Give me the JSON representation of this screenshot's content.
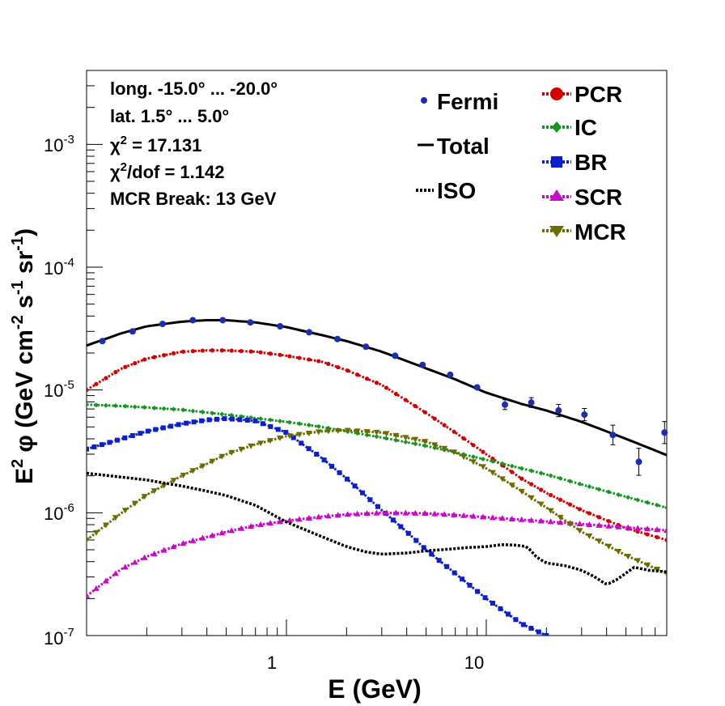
{
  "chart_data": {
    "type": "line",
    "xlabel": "E (GeV)",
    "ylabel_parts": {
      "e2": "E",
      "sq": "2",
      "phi": " φ (GeV cm",
      "m2": "-2",
      "s": " s",
      "m1a": "-1",
      "sr": " sr",
      "m1b": "-1",
      "close": ")"
    },
    "x_scale": "log",
    "y_scale": "log",
    "xlim": [
      0.1,
      80
    ],
    "ylim": [
      1e-07,
      0.004
    ],
    "x_tick_labels": [
      {
        "v": 1,
        "label": "1"
      },
      {
        "v": 10,
        "label": "10"
      }
    ],
    "y_tick_labels": [
      {
        "v": 1e-07,
        "base": "10",
        "exp": "-7"
      },
      {
        "v": 1e-06,
        "base": "10",
        "exp": "-6"
      },
      {
        "v": 1e-05,
        "base": "10",
        "exp": "-5"
      },
      {
        "v": 0.0001,
        "base": "10",
        "exp": "-4"
      },
      {
        "v": 0.001,
        "base": "10",
        "exp": "-3"
      }
    ],
    "annotations": {
      "long": "long. -15.0° ... -20.0°",
      "lat": "lat. 1.5° ... 5.0°",
      "chi2_sym": "χ",
      "chi2_exp": "2",
      "chi2_rest": " = 17.131",
      "chi2dof_sym": "χ",
      "chi2dof_exp": "2",
      "chi2dof_rest": "/dof = 1.142",
      "mcr_break": "MCR Break: 13 GeV"
    },
    "legend": {
      "left": [
        {
          "label": "Fermi",
          "color": "#1a2fb0",
          "marker": "dot"
        },
        {
          "label": "Total",
          "color": "#000000",
          "marker": "line"
        },
        {
          "label": "ISO",
          "color": "#000000",
          "marker": "dotted"
        }
      ],
      "right": [
        {
          "label": "PCR",
          "color": "#d40000",
          "marker": "circle"
        },
        {
          "label": "IC",
          "color": "#14961e",
          "marker": "diamond"
        },
        {
          "label": "BR",
          "color": "#0b1fcc",
          "marker": "square"
        },
        {
          "label": "SCR",
          "color": "#c80ac8",
          "marker": "triangle-up"
        },
        {
          "label": "MCR",
          "color": "#6b6b00",
          "marker": "triangle-down"
        }
      ]
    },
    "fermi": {
      "name": "Fermi",
      "color": "#1a2fb0",
      "points": [
        {
          "x": 0.12,
          "y": 2.5e-05,
          "err": 0
        },
        {
          "x": 0.17,
          "y": 3e-05,
          "err": 0
        },
        {
          "x": 0.24,
          "y": 3.45e-05,
          "err": 0
        },
        {
          "x": 0.34,
          "y": 3.7e-05,
          "err": 0
        },
        {
          "x": 0.48,
          "y": 3.7e-05,
          "err": 0
        },
        {
          "x": 0.66,
          "y": 3.55e-05,
          "err": 0
        },
        {
          "x": 0.93,
          "y": 3.3e-05,
          "err": 0
        },
        {
          "x": 1.3,
          "y": 2.95e-05,
          "err": 0
        },
        {
          "x": 1.8,
          "y": 2.6e-05,
          "err": 0
        },
        {
          "x": 2.5,
          "y": 2.25e-05,
          "err": 0
        },
        {
          "x": 3.5,
          "y": 1.9e-05,
          "err": 0
        },
        {
          "x": 4.8,
          "y": 1.6e-05,
          "err": 0
        },
        {
          "x": 6.6,
          "y": 1.33e-05,
          "err": 0
        },
        {
          "x": 9.0,
          "y": 1.05e-05,
          "err": 0
        },
        {
          "x": 12.4,
          "y": 7.6e-06,
          "err": 0.08
        },
        {
          "x": 16.8,
          "y": 7.9e-06,
          "err": 0.08
        },
        {
          "x": 23.0,
          "y": 6.8e-06,
          "err": 0.1
        },
        {
          "x": 31.0,
          "y": 6.3e-06,
          "err": 0.1
        },
        {
          "x": 43.0,
          "y": 4.3e-06,
          "err": 0.16
        },
        {
          "x": 58.0,
          "y": 2.6e-06,
          "err": 0.22
        },
        {
          "x": 78.0,
          "y": 4.5e-06,
          "err": 0.18
        }
      ]
    },
    "series": [
      {
        "name": "Total",
        "color": "#000000",
        "style": "line",
        "x": [
          0.1,
          0.15,
          0.2,
          0.3,
          0.4,
          0.5,
          0.7,
          1,
          1.5,
          2,
          3,
          5,
          7,
          10,
          15,
          20,
          30,
          50,
          80
        ],
        "y": [
          2.3e-05,
          2.9e-05,
          3.3e-05,
          3.6e-05,
          3.7e-05,
          3.7e-05,
          3.55e-05,
          3.25e-05,
          2.8e-05,
          2.5e-05,
          2.05e-05,
          1.5e-05,
          1.22e-05,
          9.5e-06,
          7.7e-06,
          6.8e-06,
          5.5e-06,
          4e-06,
          2.95e-06
        ]
      },
      {
        "name": "PCR",
        "color": "#d40000",
        "style": "circle",
        "x": [
          0.1,
          0.15,
          0.2,
          0.3,
          0.4,
          0.5,
          0.7,
          1,
          1.5,
          2,
          3,
          5,
          7,
          10,
          15,
          20,
          30,
          50,
          80
        ],
        "y": [
          1e-05,
          1.5e-05,
          1.8e-05,
          2.05e-05,
          2.1e-05,
          2.1e-05,
          2.05e-05,
          1.9e-05,
          1.7e-05,
          1.45e-05,
          1.1e-05,
          6.5e-06,
          4.5e-06,
          3e-06,
          1.9e-06,
          1.45e-06,
          1.05e-06,
          7.5e-07,
          6e-07
        ]
      },
      {
        "name": "IC",
        "color": "#14961e",
        "style": "diamond",
        "x": [
          0.1,
          0.15,
          0.2,
          0.3,
          0.5,
          0.7,
          1,
          1.5,
          2,
          3,
          5,
          7,
          10,
          15,
          20,
          30,
          50,
          80
        ],
        "y": [
          7.6e-06,
          7.4e-06,
          7.2e-06,
          6.9e-06,
          6.3e-06,
          5.9e-06,
          5.5e-06,
          5e-06,
          4.6e-06,
          4.1e-06,
          3.5e-06,
          3.1e-06,
          2.7e-06,
          2.3e-06,
          2.05e-06,
          1.7e-06,
          1.35e-06,
          1.1e-06
        ]
      },
      {
        "name": "BR",
        "color": "#0b1fcc",
        "style": "square",
        "x": [
          0.1,
          0.15,
          0.2,
          0.3,
          0.4,
          0.5,
          0.7,
          1,
          1.5,
          2,
          3,
          4,
          5,
          7,
          10,
          15,
          20
        ],
        "y": [
          3.3e-06,
          4e-06,
          4.6e-06,
          5.3e-06,
          5.7e-06,
          5.85e-06,
          5.6e-06,
          4.5e-06,
          2.8e-06,
          1.9e-06,
          1.05e-06,
          7e-07,
          5e-07,
          3.2e-07,
          2e-07,
          1.25e-07,
          1e-07
        ]
      },
      {
        "name": "SCR",
        "color": "#c80ac8",
        "style": "triangle-up",
        "x": [
          0.1,
          0.15,
          0.2,
          0.3,
          0.5,
          0.7,
          1,
          1.5,
          2,
          3,
          5,
          7,
          10,
          15,
          20,
          30,
          50,
          80
        ],
        "y": [
          2.1e-07,
          3.5e-07,
          4.4e-07,
          5.6e-07,
          7e-07,
          7.9e-07,
          8.6e-07,
          9.3e-07,
          9.7e-07,
          1e-06,
          9.9e-07,
          9.6e-07,
          9.2e-07,
          8.8e-07,
          8.5e-07,
          8.1e-07,
          7.6e-07,
          7.2e-07
        ]
      },
      {
        "name": "MCR",
        "color": "#6b6b00",
        "style": "triangle-down",
        "x": [
          0.1,
          0.15,
          0.2,
          0.3,
          0.4,
          0.5,
          0.7,
          1,
          1.5,
          2,
          3,
          5,
          7,
          10,
          15,
          20,
          30,
          50,
          80
        ],
        "y": [
          6e-07,
          1e-06,
          1.4e-06,
          2e-06,
          2.5e-06,
          3e-06,
          3.6e-06,
          4.2e-06,
          4.6e-06,
          4.7e-06,
          4.5e-06,
          3.8e-06,
          3.1e-06,
          2.3e-06,
          1.5e-06,
          1.1e-06,
          7e-07,
          4.5e-07,
          3.2e-07
        ]
      },
      {
        "name": "ISO",
        "color": "#000000",
        "style": "dotted",
        "x": [
          0.1,
          0.15,
          0.2,
          0.3,
          0.4,
          0.5,
          0.7,
          1,
          1.5,
          2,
          2.5,
          3,
          4,
          5,
          6,
          8,
          10,
          12,
          14,
          16,
          18,
          20,
          25,
          30,
          35,
          40,
          45,
          55,
          65,
          80
        ],
        "y": [
          2.1e-06,
          1.95e-06,
          1.85e-06,
          1.65e-06,
          1.5e-06,
          1.38e-06,
          1.15e-06,
          8.4e-07,
          6.4e-07,
          5.3e-07,
          4.8e-07,
          4.6e-07,
          4.7e-07,
          4.9e-07,
          5e-07,
          5.2e-07,
          5.3e-07,
          5.5e-07,
          5.45e-07,
          5.3e-07,
          4.3e-07,
          3.9e-07,
          3.7e-07,
          3.4e-07,
          3e-07,
          2.6e-07,
          2.85e-07,
          3.6e-07,
          3.4e-07,
          3.3e-07
        ]
      }
    ]
  }
}
